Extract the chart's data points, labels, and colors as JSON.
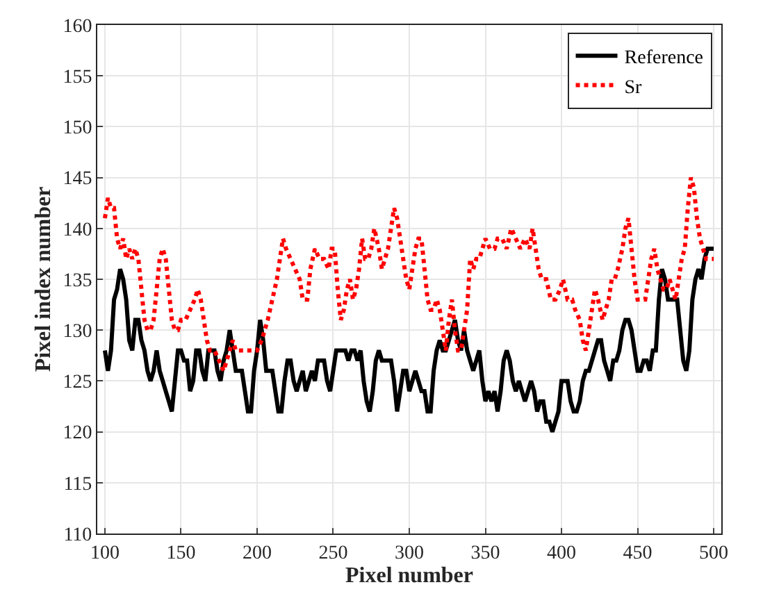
{
  "chart_data": {
    "type": "line",
    "xlabel": "Pixel number",
    "ylabel": "Pixel index number",
    "xlim": [
      95,
      505
    ],
    "xticks": [
      100,
      150,
      200,
      250,
      300,
      350,
      400,
      450,
      500
    ],
    "ylim": [
      110,
      160
    ],
    "yticks": [
      110,
      115,
      120,
      125,
      130,
      135,
      140,
      145,
      150,
      155,
      160
    ],
    "grid": true,
    "legend": "top right",
    "series": [
      {
        "name": "Reference",
        "color": "#000000",
        "line_style": "solid",
        "x": [
          100,
          102,
          104,
          106,
          108,
          110,
          112,
          114,
          116,
          118,
          120,
          122,
          124,
          126,
          128,
          130,
          132,
          134,
          136,
          138,
          140,
          142,
          144,
          146,
          148,
          150,
          152,
          154,
          156,
          158,
          160,
          162,
          164,
          166,
          168,
          170,
          172,
          174,
          176,
          178,
          180,
          182,
          184,
          186,
          188,
          190,
          192,
          194,
          196,
          198,
          200,
          202,
          204,
          206,
          208,
          210,
          212,
          214,
          216,
          218,
          220,
          222,
          224,
          226,
          228,
          230,
          232,
          234,
          236,
          238,
          240,
          242,
          244,
          246,
          248,
          250,
          252,
          254,
          256,
          258,
          260,
          262,
          264,
          266,
          268,
          270,
          272,
          274,
          276,
          278,
          280,
          282,
          284,
          286,
          288,
          290,
          292,
          294,
          296,
          298,
          300,
          302,
          304,
          306,
          308,
          310,
          312,
          314,
          316,
          318,
          320,
          322,
          324,
          326,
          328,
          330,
          332,
          334,
          336,
          338,
          340,
          342,
          344,
          346,
          348,
          350,
          352,
          354,
          356,
          358,
          360,
          362,
          364,
          366,
          368,
          370,
          372,
          374,
          376,
          378,
          380,
          382,
          384,
          386,
          388,
          390,
          392,
          394,
          396,
          398,
          400,
          402,
          404,
          406,
          408,
          410,
          412,
          414,
          416,
          418,
          420,
          422,
          424,
          426,
          428,
          430,
          432,
          434,
          436,
          438,
          440,
          442,
          444,
          446,
          448,
          450,
          452,
          454,
          456,
          458,
          460,
          462,
          464,
          466,
          468,
          470,
          472,
          474,
          476,
          478,
          480,
          482,
          484,
          486,
          488,
          490,
          492,
          494,
          496,
          498,
          500
        ],
        "values": [
          128,
          126,
          128,
          133,
          134,
          136,
          135,
          133,
          129,
          128,
          131,
          131,
          129,
          128,
          126,
          125,
          126,
          128,
          126,
          125,
          124,
          123,
          122,
          125,
          128,
          128,
          127,
          127,
          124,
          125,
          128,
          128,
          126,
          125,
          128,
          128,
          128,
          126,
          125,
          127,
          128,
          130,
          128,
          126,
          126,
          126,
          124,
          122,
          122,
          126,
          128,
          131,
          129,
          126,
          126,
          126,
          124,
          122,
          122,
          125,
          127,
          127,
          125,
          124,
          125,
          126,
          124,
          125,
          126,
          125,
          127,
          127,
          127,
          125,
          124,
          126,
          128,
          128,
          128,
          128,
          127,
          128,
          128,
          127,
          128,
          125,
          123,
          122,
          124,
          127,
          128,
          127,
          127,
          127,
          127,
          125,
          122,
          124,
          126,
          126,
          124,
          125,
          126,
          125,
          124,
          124,
          122,
          122,
          126,
          128,
          129,
          128,
          128,
          129,
          130,
          131,
          129,
          128,
          130,
          128,
          127,
          126,
          127,
          128,
          125,
          123,
          124,
          123,
          124,
          122,
          124,
          127,
          128,
          127,
          125,
          124,
          125,
          124,
          123,
          124,
          125,
          124,
          122,
          123,
          123,
          121,
          121,
          120,
          121,
          122,
          125,
          125,
          125,
          123,
          122,
          122,
          123,
          125,
          126,
          126,
          127,
          128,
          129,
          129,
          127,
          126,
          125,
          127,
          127,
          128,
          130,
          131,
          131,
          130,
          128,
          126,
          126,
          127,
          127,
          126,
          128,
          128,
          133,
          136,
          135,
          133,
          133,
          133,
          133,
          130,
          127,
          126,
          128,
          133,
          135,
          136,
          135,
          137,
          138,
          138,
          138
        ]
      },
      {
        "name": "Sr",
        "color": "#ff0000",
        "line_style": "dotted",
        "x": [
          100,
          102,
          104,
          106,
          108,
          110,
          112,
          114,
          116,
          118,
          120,
          122,
          124,
          126,
          128,
          130,
          132,
          134,
          136,
          138,
          140,
          142,
          144,
          146,
          148,
          150,
          153,
          156,
          159,
          161,
          163,
          165,
          167,
          169,
          172,
          175,
          178,
          180,
          182,
          184,
          186,
          188,
          190,
          195,
          200,
          203,
          205,
          207,
          210,
          213,
          215,
          217,
          219,
          222,
          225,
          228,
          230,
          233,
          235,
          238,
          241,
          244,
          247,
          249,
          251,
          253,
          255,
          257,
          259,
          261,
          263,
          265,
          267,
          269,
          271,
          273,
          275,
          277,
          280,
          282,
          284,
          286,
          288,
          290,
          292,
          294,
          296,
          298,
          300,
          302,
          304,
          306,
          308,
          310,
          312,
          314,
          316,
          318,
          320,
          322,
          324,
          326,
          328,
          330,
          332,
          334,
          336,
          338,
          340,
          342,
          344,
          346,
          348,
          350,
          353,
          356,
          358,
          361,
          364,
          367,
          370,
          373,
          376,
          379,
          381,
          383,
          385,
          387,
          390,
          393,
          396,
          399,
          401,
          404,
          407,
          409,
          412,
          414,
          416,
          418,
          420,
          422,
          424,
          427,
          429,
          431,
          433,
          435,
          437,
          440,
          442,
          444,
          446,
          448,
          450,
          452,
          455,
          457,
          459,
          461,
          463,
          465,
          467,
          469,
          471,
          473,
          475,
          477,
          479,
          481,
          483,
          485,
          487,
          489,
          491,
          493,
          495,
          497,
          500
        ],
        "values": [
          141,
          143,
          142,
          142,
          139,
          138,
          139,
          137,
          138,
          137,
          138,
          137,
          134,
          131,
          130,
          130,
          131,
          134,
          137,
          138,
          137,
          134,
          131,
          130,
          130,
          131,
          131,
          132,
          133,
          134,
          133,
          131,
          129,
          128,
          128,
          127,
          126,
          127,
          128,
          129,
          128,
          128,
          128,
          128,
          128,
          129,
          130,
          131,
          133,
          135,
          137,
          139,
          138,
          137,
          136,
          135,
          133,
          133,
          136,
          138,
          137,
          137,
          136,
          138,
          138,
          134,
          131,
          132,
          134,
          135,
          133,
          134,
          136,
          139,
          137,
          137,
          138,
          140,
          138,
          136,
          137,
          138,
          140,
          142,
          141,
          139,
          137,
          135,
          134,
          136,
          138,
          139,
          139,
          136,
          133,
          132,
          132,
          133,
          132,
          130,
          128,
          131,
          133,
          130,
          128,
          128,
          130,
          132,
          137,
          136,
          137,
          137,
          138,
          139,
          138,
          138,
          139,
          139,
          138,
          140,
          139,
          138,
          139,
          138,
          140,
          138,
          136,
          135,
          135,
          133,
          133,
          134,
          135,
          133,
          133,
          132,
          131,
          129,
          128,
          130,
          132,
          134,
          133,
          131,
          132,
          133,
          135,
          135,
          136,
          138,
          140,
          141,
          138,
          135,
          133,
          133,
          133,
          135,
          137,
          138,
          136,
          135,
          134,
          134,
          135,
          134,
          133,
          135,
          137,
          138,
          142,
          145,
          144,
          141,
          139,
          138,
          137,
          137,
          137
        ]
      }
    ]
  }
}
